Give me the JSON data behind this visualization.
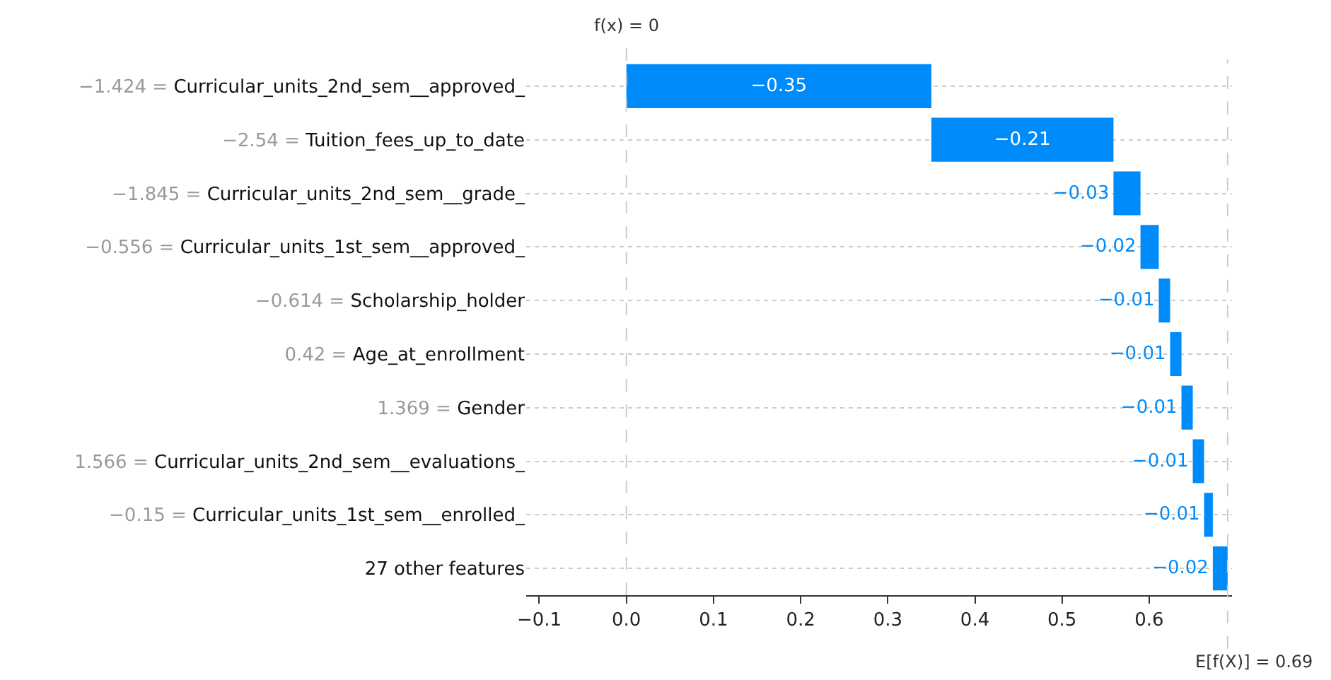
{
  "chart_data": {
    "type": "bar",
    "orientation": "horizontal",
    "categories": [
      "−1.424 = Curricular_units_2nd_sem__approved_",
      "−2.54 = Tuition_fees_up_to_date",
      "−1.845 = Curricular_units_2nd_sem__grade_",
      "−0.556 = Curricular_units_1st_sem__approved_",
      "−0.614 = Scholarship_holder",
      "0.42 = Age_at_enrollment",
      "1.369 = Gender",
      "1.566 = Curricular_units_2nd_sem__evaluations_",
      "−0.15 = Curricular_units_1st_sem__enrolled_",
      "27 other features"
    ],
    "values": [
      -0.35,
      -0.209,
      -0.031,
      -0.021,
      -0.013,
      -0.013,
      -0.013,
      -0.013,
      -0.01,
      -0.017
    ],
    "base": [
      0.35,
      0.559,
      0.59,
      0.611,
      0.624,
      0.637,
      0.65,
      0.663,
      0.673,
      0.69
    ],
    "value_labels": [
      "−0.35",
      "−0.21",
      "−0.03",
      "−0.02",
      "−0.01",
      "−0.01",
      "−0.01",
      "−0.01",
      "−0.01",
      "−0.02"
    ],
    "color": "#008bfb",
    "xlim": [
      -0.115,
      0.695
    ],
    "xticks": [
      {
        "value": -0.1,
        "label": "−0.1"
      },
      {
        "value": 0,
        "label": "0.0"
      },
      {
        "value": 0.1,
        "label": "0.1"
      },
      {
        "value": 0.2,
        "label": "0.2"
      },
      {
        "value": 0.3,
        "label": "0.3"
      },
      {
        "value": 0.4,
        "label": "0.4"
      },
      {
        "value": 0.5,
        "label": "0.5"
      },
      {
        "value": 0.6,
        "label": "0.6"
      }
    ],
    "grid": "y",
    "ref_lines": [
      {
        "axis": "x",
        "value": 0,
        "label": "f(x) = 0",
        "line_style": "dashed"
      },
      {
        "axis": "x",
        "value": 0.69,
        "label": "E[f(X)] = 0.69",
        "line_style": "dashed"
      }
    ]
  }
}
